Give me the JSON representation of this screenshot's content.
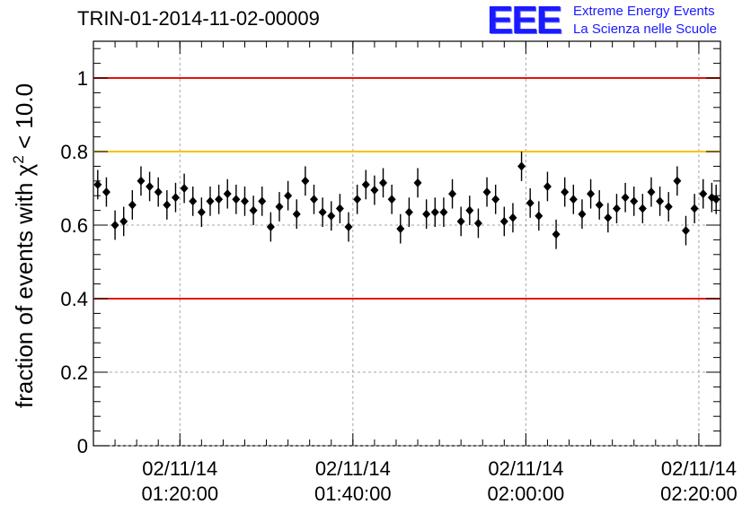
{
  "header": {
    "title": "TRIN-01-2014-11-02-00009",
    "logo_letters": "EEE",
    "logo_line1": "Extreme Energy Events",
    "logo_line2": "La Scienza nelle Scuole"
  },
  "colors": {
    "red_line": "#e0140c",
    "yellow_line": "#f7c300",
    "marker": "#000000",
    "grid": "#a6a6a6",
    "logo": "#1a1aff"
  },
  "chart_data": {
    "type": "scatter",
    "title": "TRIN-01-2014-11-02-00009",
    "ylabel": "fraction of events with χ² < 10.0",
    "xlabel": "",
    "ylim": [
      0,
      1.1
    ],
    "xlim": [
      "2014-11-02 01:10:00",
      "2014-11-02 02:22:30"
    ],
    "grid": true,
    "y_ticks": [
      "0",
      "0.2",
      "0.4",
      "0.6",
      "0.8",
      "1"
    ],
    "x_ticks": [
      {
        "time": "2014-11-02 01:20:00",
        "date_label": "02/11/14",
        "time_label": "01:20:00"
      },
      {
        "time": "2014-11-02 01:40:00",
        "date_label": "02/11/14",
        "time_label": "01:40:00"
      },
      {
        "time": "2014-11-02 02:00:00",
        "date_label": "02/11/14",
        "time_label": "02:00:00"
      },
      {
        "time": "2014-11-02 02:20:00",
        "date_label": "02/11/14",
        "time_label": "02:20:00"
      }
    ],
    "reference_lines": [
      {
        "y": 1.0,
        "color": "red"
      },
      {
        "y": 0.8,
        "color": "yellow"
      },
      {
        "y": 0.4,
        "color": "red"
      }
    ],
    "series": [
      {
        "x": [
          "01:10:30",
          "01:11:30",
          "01:12:30",
          "01:13:30",
          "01:14:30",
          "01:15:30",
          "01:16:30",
          "01:17:30",
          "01:18:30",
          "01:19:30",
          "01:20:30",
          "01:21:30",
          "01:22:30",
          "01:23:30",
          "01:24:30",
          "01:25:30",
          "01:26:30",
          "01:27:30",
          "01:28:30",
          "01:29:30",
          "01:30:30",
          "01:31:30",
          "01:32:30",
          "01:33:30",
          "01:34:30",
          "01:35:30",
          "01:36:30",
          "01:37:30",
          "01:38:30",
          "01:39:30",
          "01:40:30",
          "01:41:30",
          "01:42:30",
          "01:43:30",
          "01:44:30",
          "01:45:30",
          "01:46:30",
          "01:47:30",
          "01:48:30",
          "01:49:30",
          "01:50:30",
          "01:51:30",
          "01:52:30",
          "01:53:30",
          "01:54:30",
          "01:55:30",
          "01:56:30",
          "01:57:30",
          "01:58:30",
          "01:59:30",
          "02:00:30",
          "02:01:30",
          "02:02:30",
          "02:03:30",
          "02:04:30",
          "02:05:30",
          "02:06:30",
          "02:07:30",
          "02:08:30",
          "02:09:30",
          "02:10:30",
          "02:11:30",
          "02:12:30",
          "02:13:30",
          "02:14:30",
          "02:15:30",
          "02:16:30",
          "02:17:30",
          "02:18:30",
          "02:19:30",
          "02:20:30",
          "02:21:30",
          "02:22:00"
        ],
        "y": [
          0.71,
          0.69,
          0.6,
          0.61,
          0.655,
          0.72,
          0.705,
          0.69,
          0.655,
          0.675,
          0.7,
          0.665,
          0.635,
          0.665,
          0.67,
          0.685,
          0.67,
          0.665,
          0.64,
          0.665,
          0.595,
          0.65,
          0.68,
          0.63,
          0.72,
          0.67,
          0.635,
          0.625,
          0.645,
          0.595,
          0.67,
          0.71,
          0.695,
          0.715,
          0.67,
          0.59,
          0.635,
          0.715,
          0.63,
          0.635,
          0.635,
          0.685,
          0.61,
          0.64,
          0.605,
          0.69,
          0.67,
          0.61,
          0.62,
          0.76,
          0.66,
          0.625,
          0.705,
          0.575,
          0.69,
          0.67,
          0.63,
          0.685,
          0.655,
          0.62,
          0.645,
          0.675,
          0.665,
          0.645,
          0.69,
          0.665,
          0.65,
          0.72,
          0.585,
          0.645,
          0.685,
          0.675,
          0.67
        ],
        "err": 0.04
      }
    ]
  }
}
